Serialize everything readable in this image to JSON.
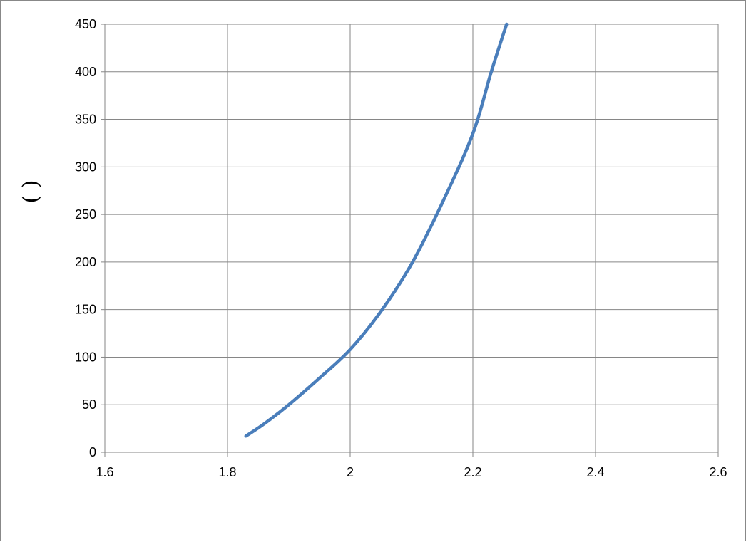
{
  "chart_data": {
    "type": "line",
    "title": "",
    "xlabel": "",
    "ylabel": "( )",
    "xlim": [
      1.6,
      2.6
    ],
    "ylim": [
      0,
      450
    ],
    "x_ticks": [
      1.6,
      1.8,
      2,
      2.2,
      2.4,
      2.6
    ],
    "y_ticks": [
      0,
      50,
      100,
      150,
      200,
      250,
      300,
      350,
      400,
      450
    ],
    "grid": true,
    "legend": "none",
    "series": [
      {
        "color": "#4a7ebb",
        "x": [
          1.83,
          1.86,
          1.9,
          1.95,
          2.0,
          2.05,
          2.1,
          2.15,
          2.2,
          2.23,
          2.255
        ],
        "y": [
          17,
          30,
          50,
          78,
          108,
          148,
          198,
          262,
          335,
          400,
          450
        ]
      }
    ]
  }
}
